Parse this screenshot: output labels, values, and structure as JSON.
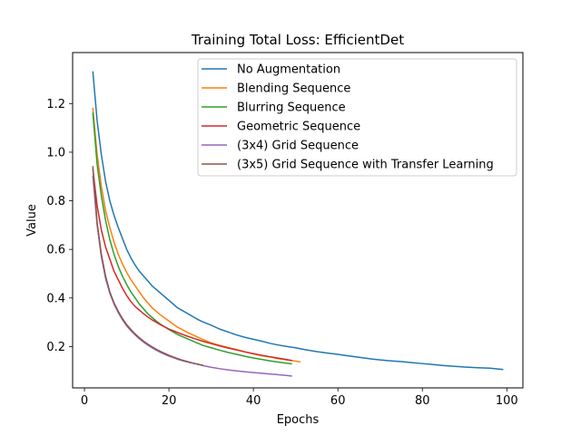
{
  "chart_data": {
    "type": "line",
    "title": "Training Total Loss: EfficientDet",
    "xlabel": "Epochs",
    "ylabel": "Value",
    "xlim": [
      -2.8,
      103.8
    ],
    "ylim": [
      0.03,
      1.41
    ],
    "xticks": [
      0,
      20,
      40,
      60,
      80,
      100
    ],
    "yticks": [
      0.2,
      0.4,
      0.6,
      0.8,
      1.0,
      1.2
    ],
    "ytick_labels": [
      "0.2",
      "0.4",
      "0.6",
      "0.8",
      "1.0",
      "1.2"
    ],
    "grid": false,
    "legend_position": "top-right",
    "series": [
      {
        "name": "No Augmentation",
        "color": "#1f77b4",
        "x": [
          2,
          3,
          4,
          5,
          6,
          7,
          8,
          9,
          10,
          11,
          12,
          13,
          14,
          15,
          16,
          17,
          18,
          19,
          20,
          21,
          22,
          23,
          24,
          25,
          26,
          27,
          28,
          29,
          30,
          32,
          34,
          36,
          38,
          40,
          42,
          44,
          46,
          48,
          50,
          52,
          55,
          58,
          60,
          62,
          65,
          68,
          70,
          72,
          75,
          78,
          80,
          82,
          85,
          88,
          90,
          93,
          96,
          99
        ],
        "values": [
          1.33,
          1.13,
          0.99,
          0.88,
          0.8,
          0.74,
          0.69,
          0.645,
          0.6,
          0.565,
          0.535,
          0.51,
          0.49,
          0.47,
          0.45,
          0.435,
          0.42,
          0.405,
          0.39,
          0.375,
          0.36,
          0.35,
          0.34,
          0.33,
          0.32,
          0.31,
          0.302,
          0.295,
          0.288,
          0.272,
          0.26,
          0.248,
          0.238,
          0.23,
          0.222,
          0.213,
          0.206,
          0.2,
          0.195,
          0.188,
          0.179,
          0.172,
          0.168,
          0.163,
          0.156,
          0.149,
          0.145,
          0.142,
          0.138,
          0.133,
          0.13,
          0.127,
          0.122,
          0.118,
          0.116,
          0.113,
          0.111,
          0.106
        ]
      },
      {
        "name": "Blending Sequence",
        "color": "#ff7f0e",
        "x": [
          2,
          3,
          4,
          5,
          6,
          7,
          8,
          9,
          10,
          11,
          12,
          13,
          14,
          15,
          16,
          17,
          18,
          20,
          22,
          24,
          26,
          28,
          30,
          32,
          34,
          36,
          38,
          40,
          42,
          44,
          46,
          48,
          50,
          51
        ],
        "values": [
          1.18,
          0.99,
          0.86,
          0.76,
          0.69,
          0.63,
          0.58,
          0.54,
          0.505,
          0.475,
          0.45,
          0.425,
          0.4,
          0.38,
          0.36,
          0.345,
          0.33,
          0.305,
          0.28,
          0.262,
          0.245,
          0.23,
          0.215,
          0.205,
          0.196,
          0.188,
          0.178,
          0.17,
          0.162,
          0.157,
          0.15,
          0.145,
          0.14,
          0.137
        ]
      },
      {
        "name": "Blurring Sequence",
        "color": "#2ca02c",
        "x": [
          2,
          3,
          4,
          5,
          6,
          7,
          8,
          9,
          10,
          11,
          12,
          13,
          14,
          15,
          16,
          17,
          18,
          20,
          22,
          24,
          26,
          28,
          30,
          32,
          34,
          36,
          38,
          40,
          42,
          44,
          46,
          48,
          49
        ],
        "values": [
          1.16,
          0.95,
          0.82,
          0.72,
          0.64,
          0.58,
          0.53,
          0.49,
          0.455,
          0.425,
          0.4,
          0.375,
          0.355,
          0.335,
          0.32,
          0.305,
          0.292,
          0.27,
          0.25,
          0.235,
          0.22,
          0.205,
          0.195,
          0.185,
          0.176,
          0.168,
          0.16,
          0.153,
          0.147,
          0.141,
          0.136,
          0.131,
          0.129
        ]
      },
      {
        "name": "Geometric Sequence",
        "color": "#d62728",
        "x": [
          2,
          3,
          4,
          5,
          6,
          7,
          8,
          9,
          10,
          11,
          12,
          13,
          14,
          15,
          16,
          17,
          18,
          20,
          22,
          24,
          26,
          28,
          30,
          32,
          34,
          36,
          38,
          40,
          42,
          44,
          46,
          48,
          49
        ],
        "values": [
          0.93,
          0.78,
          0.68,
          0.61,
          0.56,
          0.51,
          0.475,
          0.44,
          0.41,
          0.385,
          0.365,
          0.35,
          0.335,
          0.322,
          0.31,
          0.3,
          0.29,
          0.272,
          0.258,
          0.245,
          0.233,
          0.222,
          0.212,
          0.203,
          0.194,
          0.186,
          0.178,
          0.171,
          0.164,
          0.158,
          0.152,
          0.146,
          0.143
        ]
      },
      {
        "name": "(3x4) Grid Sequence",
        "color": "#9467bd",
        "x": [
          2,
          3,
          4,
          5,
          6,
          7,
          8,
          9,
          10,
          11,
          12,
          13,
          14,
          15,
          16,
          17,
          18,
          19,
          20,
          22,
          24,
          26,
          28,
          30,
          32,
          34,
          36,
          38,
          40,
          42,
          44,
          46,
          48,
          49
        ],
        "values": [
          0.9,
          0.7,
          0.57,
          0.48,
          0.42,
          0.375,
          0.34,
          0.31,
          0.285,
          0.265,
          0.248,
          0.232,
          0.218,
          0.206,
          0.195,
          0.185,
          0.176,
          0.168,
          0.161,
          0.148,
          0.138,
          0.13,
          0.122,
          0.115,
          0.109,
          0.104,
          0.1,
          0.096,
          0.093,
          0.09,
          0.087,
          0.084,
          0.081,
          0.079
        ]
      },
      {
        "name": "(3x5) Grid Sequence with Transfer Learning",
        "color": "#8c564b",
        "x": [
          2,
          3,
          4,
          5,
          6,
          7,
          8,
          9,
          10,
          11,
          12,
          13,
          14,
          15,
          16,
          17,
          18,
          19,
          20,
          21,
          22,
          23,
          24,
          25,
          26,
          27,
          28
        ],
        "values": [
          0.94,
          0.71,
          0.58,
          0.49,
          0.425,
          0.38,
          0.345,
          0.315,
          0.29,
          0.27,
          0.252,
          0.236,
          0.222,
          0.21,
          0.199,
          0.189,
          0.18,
          0.172,
          0.164,
          0.157,
          0.151,
          0.145,
          0.14,
          0.135,
          0.131,
          0.127,
          0.123
        ]
      }
    ]
  }
}
